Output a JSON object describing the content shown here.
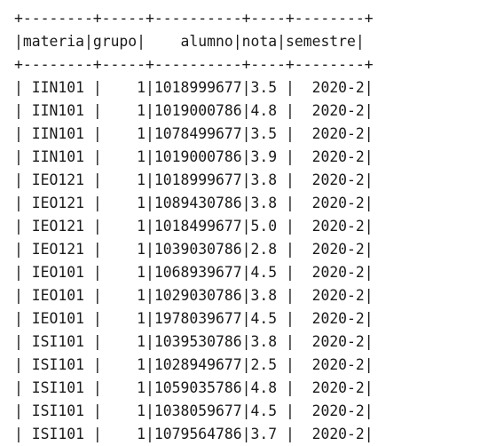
{
  "table": {
    "columns": [
      "materia",
      "grupo",
      "alumno",
      "nota",
      "semestre"
    ],
    "rows": [
      [
        "IIN101",
        "1",
        "1018999677",
        "3.5",
        "2020-2"
      ],
      [
        "IIN101",
        "1",
        "1019000786",
        "4.8",
        "2020-2"
      ],
      [
        "IIN101",
        "1",
        "1078499677",
        "3.5",
        "2020-2"
      ],
      [
        "IIN101",
        "1",
        "1019000786",
        "3.9",
        "2020-2"
      ],
      [
        "IEO121",
        "1",
        "1018999677",
        "3.8",
        "2020-2"
      ],
      [
        "IEO121",
        "1",
        "1089430786",
        "3.8",
        "2020-2"
      ],
      [
        "IEO121",
        "1",
        "1018499677",
        "5.0",
        "2020-2"
      ],
      [
        "IEO121",
        "1",
        "1039030786",
        "2.8",
        "2020-2"
      ],
      [
        "IEO101",
        "1",
        "1068939677",
        "4.5",
        "2020-2"
      ],
      [
        "IEO101",
        "1",
        "1029030786",
        "3.8",
        "2020-2"
      ],
      [
        "IEO101",
        "1",
        "1978039677",
        "4.5",
        "2020-2"
      ],
      [
        "ISI101",
        "1",
        "1039530786",
        "3.8",
        "2020-2"
      ],
      [
        "ISI101",
        "1",
        "1028949677",
        "2.5",
        "2020-2"
      ],
      [
        "ISI101",
        "1",
        "1059035786",
        "4.8",
        "2020-2"
      ],
      [
        "ISI101",
        "1",
        "1038059677",
        "4.5",
        "2020-2"
      ],
      [
        "ISI101",
        "1",
        "1079564786",
        "3.7",
        "2020-2"
      ]
    ]
  }
}
